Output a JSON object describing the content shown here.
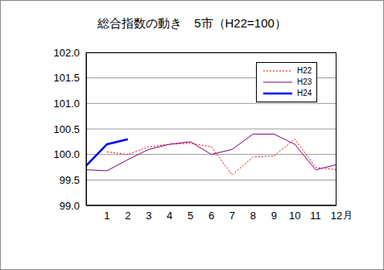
{
  "chart_data": {
    "type": "line",
    "title": "総合指数の動き　5市（H22=100）",
    "x_label": "月",
    "categories": [
      null,
      "1",
      "2",
      "3",
      "4",
      "5",
      "6",
      "7",
      "8",
      "9",
      "10",
      "11",
      "12"
    ],
    "series": [
      {
        "name": "H22",
        "color": "#ff0000",
        "line_style": "dotted",
        "values": [
          null,
          100.05,
          100.0,
          100.15,
          100.2,
          100.22,
          100.15,
          99.6,
          99.95,
          99.97,
          100.3,
          99.75,
          99.7
        ]
      },
      {
        "name": "H23",
        "color": "#800080",
        "line_style": "solid",
        "values": [
          99.7,
          99.68,
          99.9,
          100.1,
          100.2,
          100.25,
          100.0,
          100.1,
          100.4,
          100.4,
          100.2,
          99.7,
          99.8
        ]
      },
      {
        "name": "H24",
        "color": "#0000ff",
        "line_style": "solid",
        "values": [
          99.78,
          100.2,
          100.3,
          null,
          null,
          null,
          null,
          null,
          null,
          null,
          null,
          null,
          null
        ]
      }
    ],
    "ylim": [
      99,
      102
    ],
    "yticks": [
      {
        "value": 99,
        "label": "99.0"
      },
      99.5,
      {
        "value": 100,
        "label": "100.0"
      },
      100.5,
      {
        "value": 101,
        "label": "101.0"
      },
      101.5,
      {
        "value": 102,
        "label": "102.0"
      }
    ],
    "grid": true,
    "legend": "upper right"
  }
}
